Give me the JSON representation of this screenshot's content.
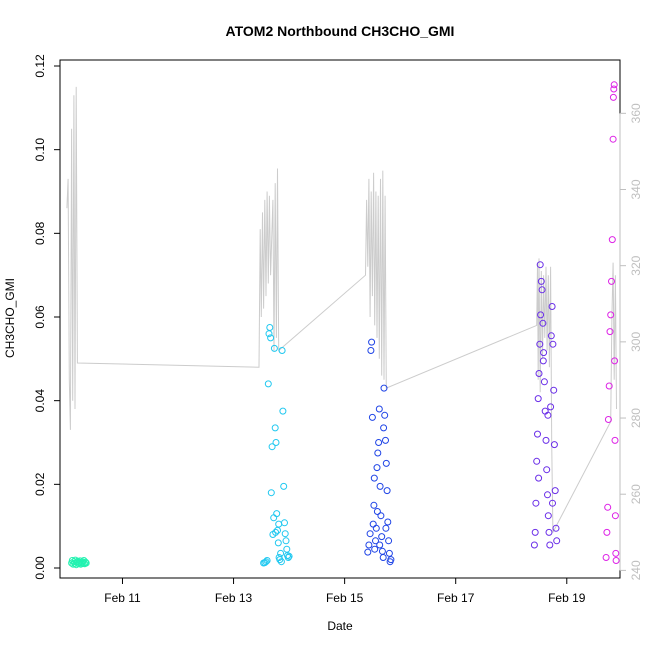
{
  "chart_data": {
    "type": "scatter",
    "title": "ATOM2 Northbound CH3CHO_GMI",
    "xlabel": "Date",
    "ylabel": "CH3CHO_GMI",
    "x_ticks": [
      "Feb 11",
      "Feb 13",
      "Feb 15",
      "Feb 17",
      "Feb 19"
    ],
    "y_ticks": [
      "0.00",
      "0.02",
      "0.04",
      "0.06",
      "0.08",
      "0.10",
      "0.12"
    ],
    "y_right_ticks": [
      "240",
      "260",
      "280",
      "300",
      "320",
      "340",
      "360"
    ],
    "ylim": [
      0,
      0.12
    ],
    "y_right_lim": [
      238,
      374
    ],
    "xlim": [
      "2017-02-09 21:00",
      "2017-02-19 23:00"
    ],
    "series": [
      {
        "color": "#22f2b0",
        "points": [
          [
            "2017-02-10 02:00",
            0.0012
          ],
          [
            "2017-02-10 02:20",
            0.0018
          ],
          [
            "2017-02-10 02:40",
            0.0009
          ],
          [
            "2017-02-10 03:00",
            0.0015
          ],
          [
            "2017-02-10 03:20",
            0.0011
          ],
          [
            "2017-02-10 03:40",
            0.0019
          ],
          [
            "2017-02-10 04:00",
            0.0008
          ],
          [
            "2017-02-10 04:20",
            0.0014
          ],
          [
            "2017-02-10 04:40",
            0.0016
          ],
          [
            "2017-02-10 05:00",
            0.001
          ],
          [
            "2017-02-10 05:20",
            0.0013
          ],
          [
            "2017-02-10 05:40",
            0.0017
          ],
          [
            "2017-02-10 06:00",
            0.0009
          ],
          [
            "2017-02-10 06:20",
            0.0012
          ],
          [
            "2017-02-10 06:40",
            0.0015
          ],
          [
            "2017-02-10 07:00",
            0.0011
          ],
          [
            "2017-02-10 07:20",
            0.0018
          ],
          [
            "2017-02-10 07:40",
            0.001
          ],
          [
            "2017-02-10 08:00",
            0.0014
          ],
          [
            "2017-02-10 08:20",
            0.0012
          ]
        ]
      },
      {
        "color": "#20c8f0",
        "points": [
          [
            "2017-02-13 13:00",
            0.0012
          ],
          [
            "2017-02-13 13:30",
            0.0013
          ],
          [
            "2017-02-13 14:00",
            0.0015
          ],
          [
            "2017-02-13 14:30",
            0.0018
          ],
          [
            "2017-02-13 15:00",
            0.044
          ],
          [
            "2017-02-13 15:20",
            0.056
          ],
          [
            "2017-02-13 15:40",
            0.0575
          ],
          [
            "2017-02-13 16:00",
            0.055
          ],
          [
            "2017-02-13 16:20",
            0.018
          ],
          [
            "2017-02-13 16:40",
            0.029
          ],
          [
            "2017-02-13 17:00",
            0.008
          ],
          [
            "2017-02-13 17:20",
            0.012
          ],
          [
            "2017-02-13 17:40",
            0.0525
          ],
          [
            "2017-02-13 18:00",
            0.0335
          ],
          [
            "2017-02-13 18:20",
            0.03
          ],
          [
            "2017-02-13 18:40",
            0.013
          ],
          [
            "2017-02-13 19:00",
            0.009
          ],
          [
            "2017-02-13 19:20",
            0.006
          ],
          [
            "2017-02-13 19:40",
            0.0025
          ],
          [
            "2017-02-13 20:00",
            0.002
          ],
          [
            "2017-02-13 20:20",
            0.0035
          ],
          [
            "2017-02-13 20:40",
            0.0015
          ],
          [
            "2017-02-13 21:00",
            0.052
          ],
          [
            "2017-02-13 21:20",
            0.0375
          ],
          [
            "2017-02-13 21:40",
            0.0195
          ],
          [
            "2017-02-13 22:00",
            0.0108
          ],
          [
            "2017-02-13 22:20",
            0.0082
          ],
          [
            "2017-02-13 22:40",
            0.0065
          ],
          [
            "2017-02-13 23:00",
            0.0045
          ],
          [
            "2017-02-13 23:20",
            0.003
          ],
          [
            "2017-02-13 23:40",
            0.0025
          ],
          [
            "2017-02-14 00:00",
            0.0028
          ],
          [
            "2017-02-13 19:30",
            0.0105
          ],
          [
            "2017-02-13 18:10",
            0.0085
          ]
        ]
      },
      {
        "color": "#1f44e6",
        "points": [
          [
            "2017-02-15 10:00",
            0.0038
          ],
          [
            "2017-02-15 10:30",
            0.0055
          ],
          [
            "2017-02-15 11:00",
            0.0082
          ],
          [
            "2017-02-15 11:20",
            0.052
          ],
          [
            "2017-02-15 11:40",
            0.054
          ],
          [
            "2017-02-15 12:00",
            0.036
          ],
          [
            "2017-02-15 12:20",
            0.0105
          ],
          [
            "2017-02-15 12:40",
            0.015
          ],
          [
            "2017-02-15 13:00",
            0.0045
          ],
          [
            "2017-02-15 13:20",
            0.0065
          ],
          [
            "2017-02-15 13:40",
            0.0095
          ],
          [
            "2017-02-15 14:00",
            0.024
          ],
          [
            "2017-02-15 14:20",
            0.0275
          ],
          [
            "2017-02-15 14:40",
            0.03
          ],
          [
            "2017-02-15 15:00",
            0.038
          ],
          [
            "2017-02-15 15:20",
            0.0195
          ],
          [
            "2017-02-15 15:40",
            0.0125
          ],
          [
            "2017-02-15 16:00",
            0.0075
          ],
          [
            "2017-02-15 16:20",
            0.004
          ],
          [
            "2017-02-15 16:40",
            0.0025
          ],
          [
            "2017-02-15 17:00",
            0.043
          ],
          [
            "2017-02-15 17:20",
            0.0365
          ],
          [
            "2017-02-15 17:40",
            0.0305
          ],
          [
            "2017-02-15 18:00",
            0.025
          ],
          [
            "2017-02-15 18:20",
            0.0185
          ],
          [
            "2017-02-15 18:40",
            0.011
          ],
          [
            "2017-02-15 19:00",
            0.0065
          ],
          [
            "2017-02-15 19:20",
            0.0035
          ],
          [
            "2017-02-15 19:40",
            0.0015
          ],
          [
            "2017-02-15 20:00",
            0.002
          ],
          [
            "2017-02-15 12:50",
            0.0215
          ],
          [
            "2017-02-15 14:10",
            0.0135
          ],
          [
            "2017-02-15 15:10",
            0.0055
          ],
          [
            "2017-02-15 16:50",
            0.0335
          ],
          [
            "2017-02-15 17:50",
            0.0095
          ]
        ]
      },
      {
        "color": "#6a2ee8",
        "points": [
          [
            "2017-02-18 10:00",
            0.0055
          ],
          [
            "2017-02-18 10:20",
            0.0085
          ],
          [
            "2017-02-18 10:40",
            0.0155
          ],
          [
            "2017-02-18 11:00",
            0.0255
          ],
          [
            "2017-02-18 11:20",
            0.032
          ],
          [
            "2017-02-18 11:40",
            0.0405
          ],
          [
            "2017-02-18 12:00",
            0.0465
          ],
          [
            "2017-02-18 12:20",
            0.0535
          ],
          [
            "2017-02-18 12:40",
            0.0605
          ],
          [
            "2017-02-18 13:00",
            0.0685
          ],
          [
            "2017-02-18 13:20",
            0.0665
          ],
          [
            "2017-02-18 13:40",
            0.0585
          ],
          [
            "2017-02-18 14:00",
            0.0515
          ],
          [
            "2017-02-18 14:20",
            0.0445
          ],
          [
            "2017-02-18 14:40",
            0.0375
          ],
          [
            "2017-02-18 15:00",
            0.0305
          ],
          [
            "2017-02-18 15:20",
            0.0235
          ],
          [
            "2017-02-18 15:40",
            0.0175
          ],
          [
            "2017-02-18 16:00",
            0.0125
          ],
          [
            "2017-02-18 16:20",
            0.0085
          ],
          [
            "2017-02-18 16:40",
            0.0055
          ],
          [
            "2017-02-18 17:00",
            0.0385
          ],
          [
            "2017-02-18 17:20",
            0.0555
          ],
          [
            "2017-02-18 17:40",
            0.0625
          ],
          [
            "2017-02-18 18:00",
            0.0535
          ],
          [
            "2017-02-18 18:20",
            0.0425
          ],
          [
            "2017-02-18 18:40",
            0.0295
          ],
          [
            "2017-02-18 19:00",
            0.0185
          ],
          [
            "2017-02-18 19:20",
            0.0095
          ],
          [
            "2017-02-18 19:40",
            0.0065
          ],
          [
            "2017-02-18 11:50",
            0.0215
          ],
          [
            "2017-02-18 13:50",
            0.0495
          ],
          [
            "2017-02-18 15:50",
            0.0365
          ],
          [
            "2017-02-18 17:50",
            0.0155
          ],
          [
            "2017-02-18 12:30",
            0.0725
          ]
        ]
      },
      {
        "color": "#dd22e6",
        "points": [
          [
            "2017-02-19 17:00",
            0.0025
          ],
          [
            "2017-02-19 17:20",
            0.0085
          ],
          [
            "2017-02-19 17:40",
            0.0145
          ],
          [
            "2017-02-19 18:00",
            0.0355
          ],
          [
            "2017-02-19 18:20",
            0.0435
          ],
          [
            "2017-02-19 18:40",
            0.0565
          ],
          [
            "2017-02-19 19:00",
            0.0605
          ],
          [
            "2017-02-19 19:20",
            0.0685
          ],
          [
            "2017-02-19 19:40",
            0.0785
          ],
          [
            "2017-02-19 20:00",
            0.1025
          ],
          [
            "2017-02-19 20:10",
            0.1125
          ],
          [
            "2017-02-19 20:20",
            0.1145
          ],
          [
            "2017-02-19 20:30",
            0.1155
          ],
          [
            "2017-02-19 20:40",
            0.0495
          ],
          [
            "2017-02-19 20:50",
            0.0305
          ],
          [
            "2017-02-19 21:00",
            0.0125
          ],
          [
            "2017-02-19 21:10",
            0.0035
          ],
          [
            "2017-02-19 21:20",
            0.0018
          ]
        ]
      }
    ],
    "line_series": {
      "color": "#cccccc",
      "axis": "right",
      "points": [
        [
          "2017-02-10 00:00",
          0.086
        ],
        [
          "2017-02-10 00:30",
          0.093
        ],
        [
          "2017-02-10 01:00",
          0.045
        ],
        [
          "2017-02-10 01:30",
          0.033
        ],
        [
          "2017-02-10 02:00",
          0.105
        ],
        [
          "2017-02-10 02:30",
          0.04
        ],
        [
          "2017-02-10 03:00",
          0.113
        ],
        [
          "2017-02-10 03:30",
          0.038
        ],
        [
          "2017-02-10 04:00",
          0.115
        ],
        [
          "2017-02-10 04:30",
          0.049
        ],
        [
          "2017-02-13 11:00",
          0.048
        ],
        [
          "2017-02-13 11:30",
          0.081
        ],
        [
          "2017-02-13 12:00",
          0.06
        ],
        [
          "2017-02-13 12:30",
          0.085
        ],
        [
          "2017-02-13 13:00",
          0.062
        ],
        [
          "2017-02-13 13:30",
          0.088
        ],
        [
          "2017-02-13 14:00",
          0.065
        ],
        [
          "2017-02-13 14:30",
          0.09
        ],
        [
          "2017-02-13 15:00",
          0.068
        ],
        [
          "2017-02-13 15:30",
          0.089
        ],
        [
          "2017-02-13 16:00",
          0.07
        ],
        [
          "2017-02-13 17:00",
          0.088
        ],
        [
          "2017-02-13 17:30",
          0.052
        ],
        [
          "2017-02-13 18:00",
          0.092
        ],
        [
          "2017-02-13 18:30",
          0.055
        ],
        [
          "2017-02-13 19:00",
          0.0955
        ],
        [
          "2017-02-13 19:30",
          0.052
        ],
        [
          "2017-02-15 09:00",
          0.07
        ],
        [
          "2017-02-15 09:30",
          0.088
        ],
        [
          "2017-02-15 10:00",
          0.072
        ],
        [
          "2017-02-15 10:30",
          0.093
        ],
        [
          "2017-02-15 11:00",
          0.06
        ],
        [
          "2017-02-15 11:30",
          0.09
        ],
        [
          "2017-02-15 12:00",
          0.065
        ],
        [
          "2017-02-15 12:30",
          0.0945
        ],
        [
          "2017-02-15 13:00",
          0.058
        ],
        [
          "2017-02-15 13:30",
          0.09
        ],
        [
          "2017-02-15 14:00",
          0.055
        ],
        [
          "2017-02-15 14:30",
          0.089
        ],
        [
          "2017-02-15 15:00",
          0.05
        ],
        [
          "2017-02-15 15:30",
          0.093
        ],
        [
          "2017-02-15 16:00",
          0.046
        ],
        [
          "2017-02-15 16:30",
          0.095
        ],
        [
          "2017-02-15 17:00",
          0.045
        ],
        [
          "2017-02-15 17:30",
          0.089
        ],
        [
          "2017-02-15 18:00",
          0.043
        ],
        [
          "2017-02-18 11:00",
          0.058
        ],
        [
          "2017-02-18 11:20",
          0.073
        ],
        [
          "2017-02-18 11:40",
          0.045
        ],
        [
          "2017-02-18 12:00",
          0.074
        ],
        [
          "2017-02-18 12:30",
          0.042
        ],
        [
          "2017-02-18 13:00",
          0.071
        ],
        [
          "2017-02-18 13:30",
          0.05
        ],
        [
          "2017-02-18 14:00",
          0.07
        ],
        [
          "2017-02-18 14:30",
          0.055
        ],
        [
          "2017-02-18 15:00",
          0.072
        ],
        [
          "2017-02-18 15:30",
          0.052
        ],
        [
          "2017-02-18 16:00",
          0.07
        ],
        [
          "2017-02-18 16:30",
          0.048
        ],
        [
          "2017-02-18 17:00",
          0.072
        ],
        [
          "2017-02-18 17:30",
          0.03
        ],
        [
          "2017-02-18 18:00",
          0.0085
        ],
        [
          "2017-02-19 19:00",
          0.035
        ],
        [
          "2017-02-19 19:30",
          0.06
        ],
        [
          "2017-02-19 20:00",
          0.073
        ],
        [
          "2017-02-19 20:30",
          0.045
        ],
        [
          "2017-02-19 21:00",
          0.07
        ],
        [
          "2017-02-19 21:30",
          0.038
        ]
      ]
    },
    "grid": false,
    "legend": "none"
  }
}
